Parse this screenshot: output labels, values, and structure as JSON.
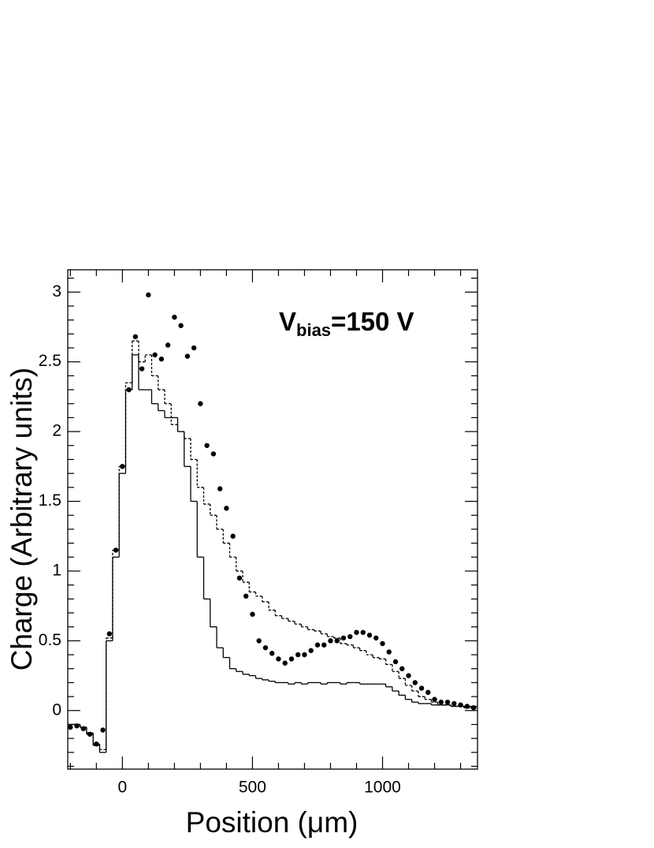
{
  "chart_data": {
    "type": "scatter-histogram",
    "annotation": {
      "main": "V",
      "sub": "bias",
      "rest": "=150 V"
    },
    "xlabel": "Position (μm)",
    "ylabel": "Charge (Arbitrary units)",
    "xlim": [
      -210,
      1365
    ],
    "ylim": [
      -0.42,
      3.16
    ],
    "xticks": [
      0,
      500,
      1000
    ],
    "yticks": [
      0,
      0.5,
      1,
      1.5,
      2,
      2.5,
      3
    ],
    "xminorticks": [
      -200,
      -100,
      100,
      200,
      300,
      400,
      600,
      700,
      800,
      900,
      1100,
      1200,
      1300
    ],
    "yminorticks": [
      -0.4,
      -0.3,
      -0.2,
      -0.1,
      0.1,
      0.2,
      0.3,
      0.4,
      0.6,
      0.7,
      0.8,
      0.9,
      1.1,
      1.2,
      1.3,
      1.4,
      1.6,
      1.7,
      1.8,
      1.9,
      2.1,
      2.2,
      2.3,
      2.4,
      2.6,
      2.7,
      2.8,
      2.9,
      3.1
    ],
    "x": [
      -200,
      -175,
      -150,
      -125,
      -100,
      -75,
      -50,
      -25,
      0,
      25,
      50,
      75,
      100,
      125,
      150,
      175,
      200,
      225,
      250,
      275,
      300,
      325,
      350,
      375,
      400,
      425,
      450,
      475,
      500,
      525,
      550,
      575,
      600,
      625,
      650,
      675,
      700,
      725,
      750,
      775,
      800,
      825,
      850,
      875,
      900,
      925,
      950,
      975,
      1000,
      1025,
      1050,
      1075,
      1100,
      1125,
      1150,
      1175,
      1200,
      1225,
      1250,
      1275,
      1300,
      1325,
      1350
    ],
    "series": [
      {
        "style": "dots",
        "color": "#000000",
        "values": [
          -0.12,
          -0.11,
          -0.13,
          -0.17,
          -0.24,
          -0.14,
          0.55,
          1.15,
          1.75,
          2.3,
          2.68,
          2.45,
          2.98,
          2.55,
          2.52,
          2.62,
          2.82,
          2.76,
          2.54,
          2.6,
          2.2,
          1.9,
          1.84,
          1.59,
          1.45,
          1.25,
          0.95,
          0.82,
          0.69,
          0.5,
          0.45,
          0.41,
          0.37,
          0.34,
          0.37,
          0.4,
          0.4,
          0.43,
          0.47,
          0.47,
          0.5,
          0.5,
          0.52,
          0.53,
          0.56,
          0.56,
          0.54,
          0.52,
          0.48,
          0.42,
          0.35,
          0.3,
          0.25,
          0.2,
          0.16,
          0.13,
          0.08,
          0.06,
          0.06,
          0.05,
          0.04,
          0.03,
          0.02
        ]
      },
      {
        "style": "solid",
        "color": "#000000",
        "values": [
          -0.1,
          -0.1,
          -0.12,
          -0.17,
          -0.25,
          -0.3,
          0.5,
          1.1,
          1.7,
          2.3,
          2.55,
          2.3,
          2.3,
          2.2,
          2.15,
          2.1,
          2.1,
          2.0,
          1.75,
          1.5,
          1.1,
          0.8,
          0.6,
          0.45,
          0.38,
          0.3,
          0.28,
          0.26,
          0.25,
          0.23,
          0.22,
          0.21,
          0.2,
          0.2,
          0.19,
          0.2,
          0.19,
          0.2,
          0.2,
          0.19,
          0.2,
          0.2,
          0.19,
          0.2,
          0.2,
          0.19,
          0.19,
          0.19,
          0.19,
          0.17,
          0.14,
          0.11,
          0.08,
          0.06,
          0.05,
          0.05,
          0.04,
          0.04,
          0.04,
          0.03,
          0.03,
          0.03,
          0.03
        ]
      },
      {
        "style": "dashed",
        "color": "#000000",
        "values": [
          -0.1,
          -0.1,
          -0.12,
          -0.16,
          -0.24,
          -0.28,
          0.52,
          1.15,
          1.75,
          2.35,
          2.65,
          2.5,
          2.55,
          2.4,
          2.3,
          2.2,
          2.05,
          2.0,
          1.95,
          1.8,
          1.6,
          1.48,
          1.4,
          1.3,
          1.2,
          1.1,
          1.0,
          0.92,
          0.85,
          0.82,
          0.78,
          0.72,
          0.68,
          0.66,
          0.64,
          0.62,
          0.6,
          0.58,
          0.57,
          0.55,
          0.53,
          0.52,
          0.48,
          0.47,
          0.45,
          0.43,
          0.4,
          0.38,
          0.37,
          0.33,
          0.28,
          0.23,
          0.18,
          0.14,
          0.1,
          0.08,
          0.06,
          0.04,
          0.04,
          0.03,
          0.03,
          0.02,
          0.02
        ]
      }
    ]
  }
}
